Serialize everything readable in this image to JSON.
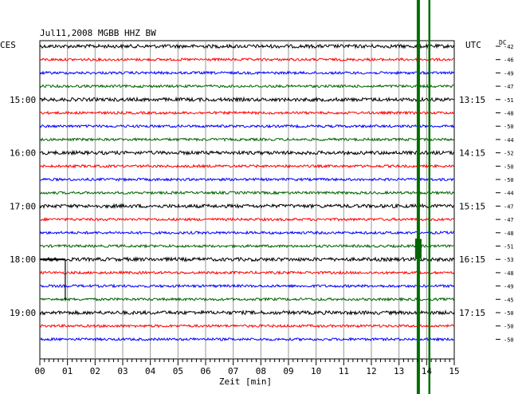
{
  "header": {
    "title": "Jul11,2008   MGBB HHZ BW"
  },
  "labels": {
    "left_zone": "CES",
    "right_zone": "UTC",
    "dc": "DC",
    "xlabel": "Zeit [min]"
  },
  "chart_data": {
    "type": "line",
    "title": "Jul11,2008   MGBB HHZ BW",
    "xlabel": "Zeit [min]",
    "ylabel": "",
    "xlim": [
      0,
      15
    ],
    "x_ticks": [
      "00",
      "01",
      "02",
      "03",
      "04",
      "05",
      "06",
      "07",
      "08",
      "09",
      "10",
      "11",
      "12",
      "13",
      "14",
      "15"
    ],
    "grid": true,
    "trace_colors": [
      "#000000",
      "#ff0000",
      "#0000ff",
      "#006400"
    ],
    "left_time_labels": [
      {
        "row": 4,
        "label": "15:00"
      },
      {
        "row": 8,
        "label": "16:00"
      },
      {
        "row": 12,
        "label": "17:00"
      },
      {
        "row": 16,
        "label": "18:00"
      },
      {
        "row": 20,
        "label": "19:00"
      }
    ],
    "right_time_labels": [
      {
        "row": 4,
        "label": "13:15"
      },
      {
        "row": 8,
        "label": "14:15"
      },
      {
        "row": 12,
        "label": "15:15"
      },
      {
        "row": 16,
        "label": "16:15"
      },
      {
        "row": 20,
        "label": "17:15"
      }
    ],
    "dc_offsets": [
      -42,
      -46,
      -49,
      -47,
      -51,
      -48,
      -50,
      -44,
      -52,
      -50,
      -50,
      -44,
      -47,
      -47,
      -48,
      -51,
      -53,
      -48,
      -49,
      -45,
      -50,
      -50,
      -50
    ],
    "event_minute": 13.7,
    "event_minute_2": 14.1
  }
}
